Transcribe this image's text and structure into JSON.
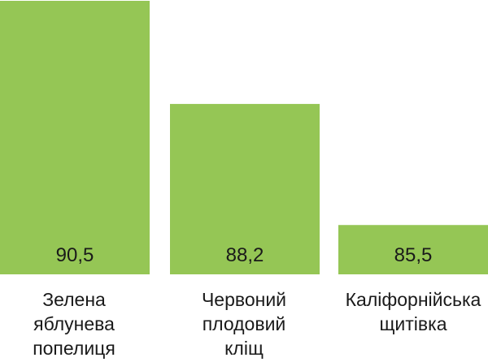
{
  "chart_data": {
    "type": "bar",
    "categories": [
      "Зелена\nяблунева\nпопелиця",
      "Червоний\nплодовий\nкліщ",
      "Каліфорнійська\nщитівка"
    ],
    "values": [
      90.5,
      88.2,
      85.5
    ],
    "value_labels": [
      "90,5",
      "88,2",
      "85,5"
    ],
    "bar_color": "#95c655",
    "title": "",
    "xlabel": "",
    "ylabel": "",
    "ylim": [
      84.4,
      90.5
    ],
    "grid": false,
    "legend": "none"
  }
}
